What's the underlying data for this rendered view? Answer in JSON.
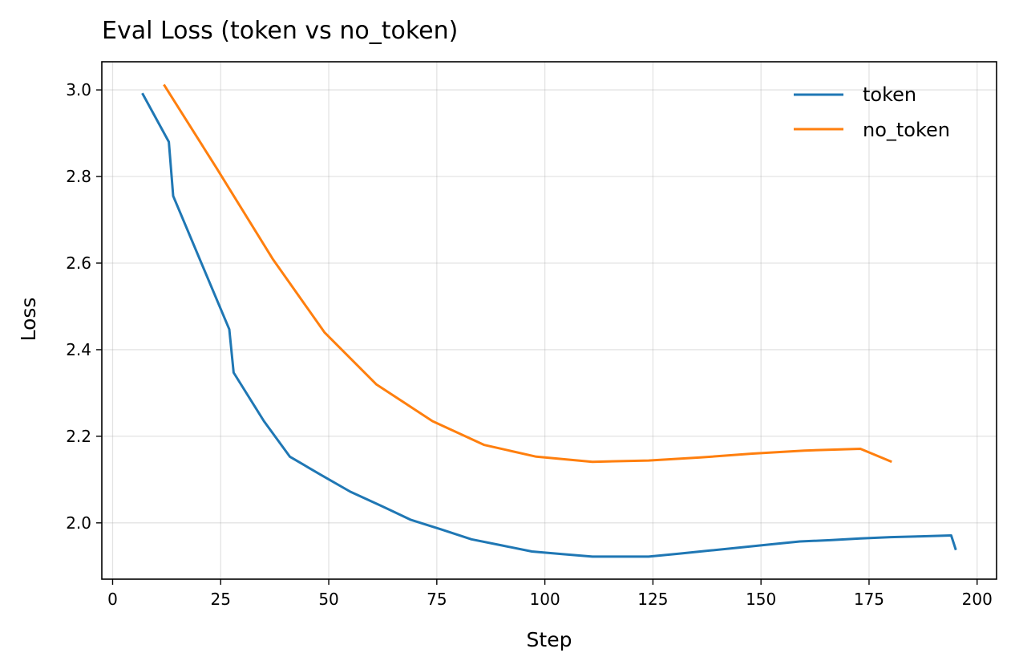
{
  "chart_data": {
    "type": "line",
    "title": "Eval Loss (token vs no_token)",
    "xlabel": "Step",
    "ylabel": "Loss",
    "xlim": [
      -2.5,
      204.5
    ],
    "ylim": [
      1.87,
      3.065
    ],
    "xticks": [
      0,
      25,
      50,
      75,
      100,
      125,
      150,
      175,
      200
    ],
    "yticks": [
      2.0,
      2.2,
      2.4,
      2.6,
      2.8,
      3.0
    ],
    "xtick_labels": [
      "0",
      "25",
      "50",
      "75",
      "100",
      "125",
      "150",
      "175",
      "200"
    ],
    "ytick_labels": [
      "2.0",
      "2.2",
      "2.4",
      "2.6",
      "2.8",
      "3.0"
    ],
    "grid": true,
    "legend_position": "top-right",
    "series": [
      {
        "name": "token",
        "color": "#1f77b4",
        "x": [
          7,
          13,
          14,
          27,
          28,
          35,
          41,
          48,
          55,
          62,
          69,
          76,
          83,
          90,
          97,
          104,
          111,
          118,
          124,
          131,
          138,
          145,
          152,
          159,
          166,
          173,
          180,
          187,
          194,
          195
        ],
        "y": [
          2.99,
          2.88,
          2.755,
          2.447,
          2.347,
          2.235,
          2.153,
          2.112,
          2.072,
          2.04,
          2.007,
          1.985,
          1.962,
          1.948,
          1.934,
          1.928,
          1.922,
          1.922,
          1.922,
          1.929,
          1.936,
          1.943,
          1.95,
          1.957,
          1.96,
          1.964,
          1.967,
          1.969,
          1.971,
          1.94
        ]
      },
      {
        "name": "no_token",
        "color": "#ff7f0e",
        "x": [
          12,
          24,
          37,
          49,
          61,
          74,
          86,
          98,
          111,
          124,
          136,
          148,
          160,
          173,
          180
        ],
        "y": [
          3.01,
          2.82,
          2.61,
          2.44,
          2.32,
          2.235,
          2.18,
          2.153,
          2.141,
          2.144,
          2.151,
          2.16,
          2.167,
          2.171,
          2.142
        ]
      }
    ]
  }
}
